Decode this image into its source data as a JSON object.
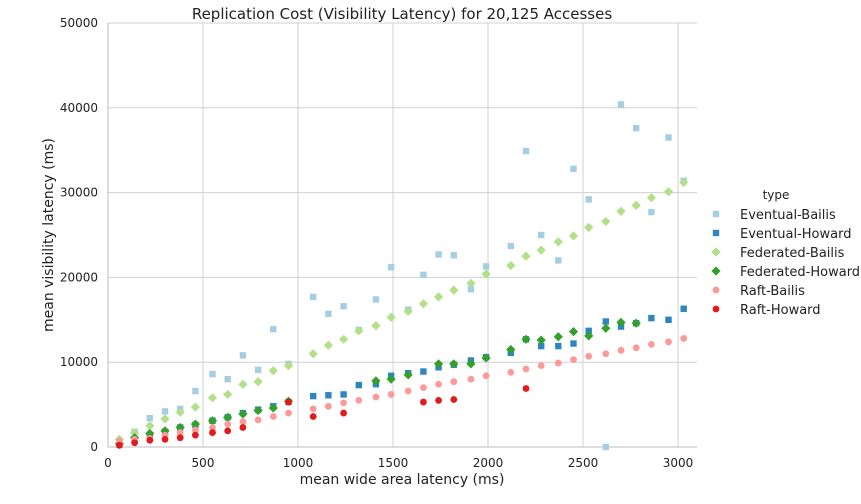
{
  "chart_data": {
    "type": "scatter",
    "title": "Replication Cost (Visibility Latency) for 20,125 Accesses",
    "xlabel": "mean wide area latency (ms)",
    "ylabel": "mean visibility latency (ms)",
    "xlim": [
      0,
      3100
    ],
    "ylim": [
      0,
      50000
    ],
    "xticks": [
      0,
      500,
      1000,
      1500,
      2000,
      2500,
      3000
    ],
    "yticks": [
      0,
      10000,
      20000,
      30000,
      40000,
      50000
    ],
    "grid": true,
    "legend": {
      "title": "type",
      "placement": "right"
    },
    "series": [
      {
        "name": "Eventual-Bailis",
        "marker": "square",
        "color": "#a6cee3",
        "points": [
          [
            60,
            700
          ],
          [
            140,
            1800
          ],
          [
            220,
            3400
          ],
          [
            300,
            4200
          ],
          [
            380,
            4500
          ],
          [
            460,
            6600
          ],
          [
            550,
            8600
          ],
          [
            630,
            8000
          ],
          [
            710,
            10800
          ],
          [
            790,
            9100
          ],
          [
            870,
            13900
          ],
          [
            950,
            9800
          ],
          [
            1080,
            17700
          ],
          [
            1160,
            15700
          ],
          [
            1240,
            16600
          ],
          [
            1320,
            13800
          ],
          [
            1410,
            17400
          ],
          [
            1490,
            21200
          ],
          [
            1580,
            16200
          ],
          [
            1660,
            20300
          ],
          [
            1740,
            22700
          ],
          [
            1820,
            22600
          ],
          [
            1910,
            18600
          ],
          [
            1990,
            21300
          ],
          [
            2120,
            23700
          ],
          [
            2200,
            34900
          ],
          [
            2280,
            25000
          ],
          [
            2370,
            22000
          ],
          [
            2450,
            32800
          ],
          [
            2530,
            29200
          ],
          [
            2620,
            0
          ],
          [
            2700,
            40400
          ],
          [
            2780,
            37600
          ],
          [
            2860,
            27700
          ],
          [
            2950,
            36500
          ],
          [
            3030,
            31400
          ]
        ]
      },
      {
        "name": "Eventual-Howard",
        "marker": "square",
        "color": "#2e86c1",
        "points": [
          [
            60,
            300
          ],
          [
            140,
            900
          ],
          [
            220,
            1400
          ],
          [
            300,
            1800
          ],
          [
            380,
            2300
          ],
          [
            460,
            2600
          ],
          [
            550,
            3100
          ],
          [
            630,
            3500
          ],
          [
            710,
            4000
          ],
          [
            790,
            4400
          ],
          [
            870,
            4800
          ],
          [
            950,
            5300
          ],
          [
            1080,
            6000
          ],
          [
            1160,
            6100
          ],
          [
            1240,
            6200
          ],
          [
            1320,
            7300
          ],
          [
            1410,
            7400
          ],
          [
            1490,
            8400
          ],
          [
            1580,
            8700
          ],
          [
            1660,
            8900
          ],
          [
            1740,
            9400
          ],
          [
            1820,
            9700
          ],
          [
            1910,
            10200
          ],
          [
            1990,
            10600
          ],
          [
            2120,
            11100
          ],
          [
            2200,
            12700
          ],
          [
            2280,
            11900
          ],
          [
            2370,
            11900
          ],
          [
            2450,
            12200
          ],
          [
            2530,
            13700
          ],
          [
            2620,
            14800
          ],
          [
            2700,
            14200
          ],
          [
            2780,
            14600
          ],
          [
            2860,
            15200
          ],
          [
            2950,
            15000
          ],
          [
            3030,
            16300
          ]
        ]
      },
      {
        "name": "Federated-Bailis",
        "marker": "diamond",
        "color": "#b2df8a",
        "points": [
          [
            60,
            900
          ],
          [
            140,
            1700
          ],
          [
            220,
            2500
          ],
          [
            300,
            3300
          ],
          [
            380,
            4100
          ],
          [
            460,
            4700
          ],
          [
            550,
            5800
          ],
          [
            630,
            6200
          ],
          [
            710,
            7400
          ],
          [
            790,
            7700
          ],
          [
            870,
            9000
          ],
          [
            950,
            9600
          ],
          [
            1080,
            11000
          ],
          [
            1160,
            12000
          ],
          [
            1240,
            12700
          ],
          [
            1320,
            13700
          ],
          [
            1410,
            14300
          ],
          [
            1490,
            15300
          ],
          [
            1580,
            16000
          ],
          [
            1660,
            16900
          ],
          [
            1740,
            17700
          ],
          [
            1820,
            18500
          ],
          [
            1910,
            19300
          ],
          [
            1990,
            20400
          ],
          [
            2120,
            21400
          ],
          [
            2200,
            22500
          ],
          [
            2280,
            23200
          ],
          [
            2370,
            24200
          ],
          [
            2450,
            24900
          ],
          [
            2530,
            25900
          ],
          [
            2620,
            26600
          ],
          [
            2700,
            27800
          ],
          [
            2780,
            28500
          ],
          [
            2860,
            29400
          ],
          [
            2950,
            30100
          ],
          [
            3030,
            31200
          ]
        ]
      },
      {
        "name": "Federated-Howard",
        "marker": "diamond",
        "color": "#33a02c",
        "points": [
          [
            60,
            400
          ],
          [
            140,
            1100
          ],
          [
            220,
            1600
          ],
          [
            300,
            1900
          ],
          [
            380,
            2300
          ],
          [
            460,
            2700
          ],
          [
            550,
            3100
          ],
          [
            630,
            3500
          ],
          [
            710,
            3900
          ],
          [
            790,
            4300
          ],
          [
            870,
            4600
          ],
          [
            950,
            5400
          ],
          [
            1410,
            7800
          ],
          [
            1490,
            8000
          ],
          [
            1580,
            8500
          ],
          [
            1740,
            9800
          ],
          [
            1820,
            9800
          ],
          [
            1910,
            9800
          ],
          [
            1990,
            10500
          ],
          [
            2120,
            11500
          ],
          [
            2200,
            12700
          ],
          [
            2280,
            12600
          ],
          [
            2370,
            13000
          ],
          [
            2450,
            13600
          ],
          [
            2530,
            13100
          ],
          [
            2620,
            14000
          ],
          [
            2700,
            14700
          ],
          [
            2780,
            14600
          ]
        ]
      },
      {
        "name": "Raft-Bailis",
        "marker": "circle",
        "color": "#fb9a99",
        "points": [
          [
            60,
            700
          ],
          [
            140,
            900
          ],
          [
            220,
            1000
          ],
          [
            300,
            1400
          ],
          [
            380,
            1700
          ],
          [
            460,
            2000
          ],
          [
            550,
            2300
          ],
          [
            630,
            2700
          ],
          [
            710,
            3000
          ],
          [
            790,
            3200
          ],
          [
            870,
            3600
          ],
          [
            950,
            4000
          ],
          [
            1080,
            4500
          ],
          [
            1160,
            4800
          ],
          [
            1240,
            5200
          ],
          [
            1320,
            5500
          ],
          [
            1410,
            5900
          ],
          [
            1490,
            6200
          ],
          [
            1580,
            6600
          ],
          [
            1660,
            7000
          ],
          [
            1740,
            7400
          ],
          [
            1820,
            7700
          ],
          [
            1910,
            8000
          ],
          [
            1990,
            8400
          ],
          [
            2120,
            8800
          ],
          [
            2200,
            9200
          ],
          [
            2280,
            9600
          ],
          [
            2370,
            9900
          ],
          [
            2450,
            10300
          ],
          [
            2530,
            10700
          ],
          [
            2620,
            11000
          ],
          [
            2700,
            11400
          ],
          [
            2780,
            11700
          ],
          [
            2860,
            12100
          ],
          [
            2950,
            12400
          ],
          [
            3030,
            12800
          ]
        ]
      },
      {
        "name": "Raft-Howard",
        "marker": "circle",
        "color": "#e31a1c",
        "points": [
          [
            60,
            200
          ],
          [
            140,
            500
          ],
          [
            220,
            800
          ],
          [
            300,
            900
          ],
          [
            380,
            1100
          ],
          [
            460,
            1400
          ],
          [
            550,
            1700
          ],
          [
            630,
            1900
          ],
          [
            710,
            2300
          ],
          [
            950,
            5300
          ],
          [
            1080,
            3600
          ],
          [
            1240,
            4000
          ],
          [
            1660,
            5300
          ],
          [
            1740,
            5500
          ],
          [
            1820,
            5600
          ],
          [
            2200,
            6900
          ]
        ]
      }
    ]
  }
}
